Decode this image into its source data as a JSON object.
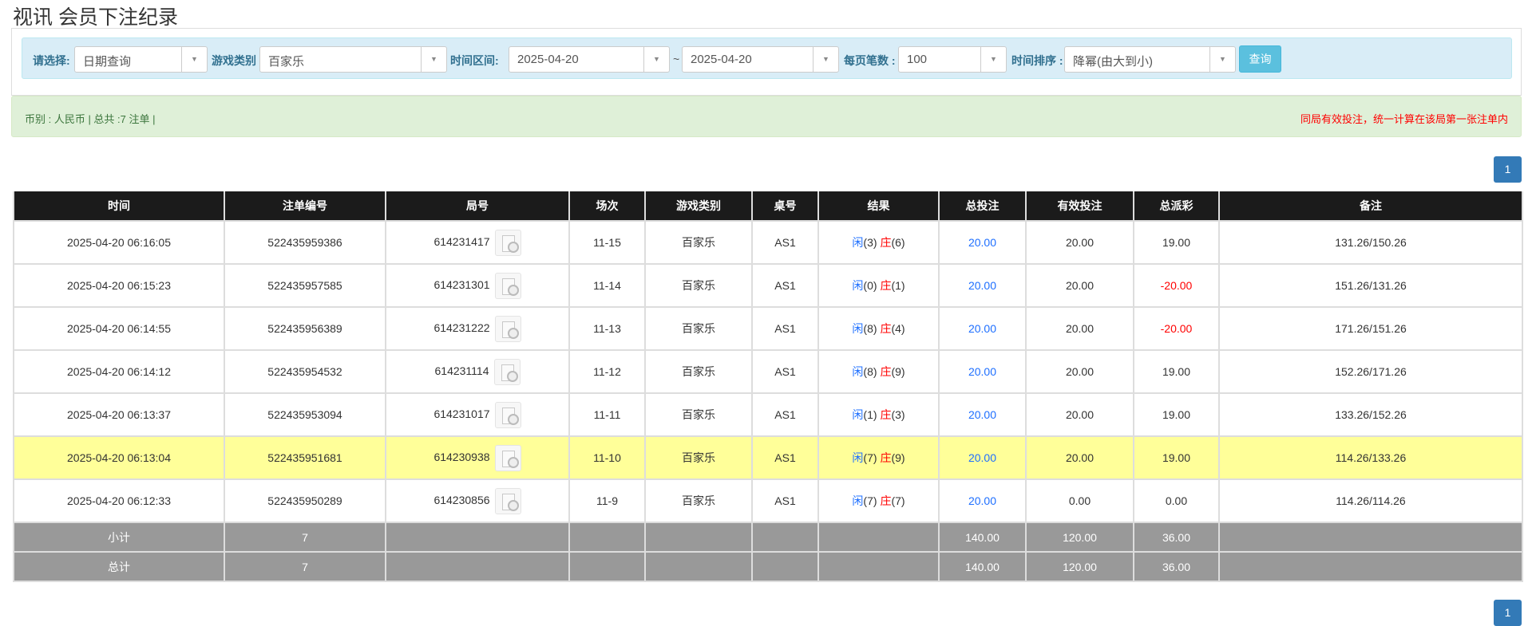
{
  "title": "视讯 会员下注纪录",
  "filter": {
    "select_label": "请选择:",
    "select_value": "日期查询",
    "game_label": "游戏类别",
    "game_value": "百家乐",
    "range_label": "时间区间:",
    "date_from": "2025-04-20",
    "tilde": "~",
    "date_to": "2025-04-20",
    "per_page_label": "每页笔数 :",
    "per_page_value": "100",
    "sort_label": "时间排序 :",
    "sort_value": "降幂(由大到小)",
    "query_label": "查询"
  },
  "summary": {
    "left": "币别 : 人民币 | 总共 :7 注单 |",
    "right": "同局有效投注，统一计算在该局第一张注单内"
  },
  "pagination": {
    "page": "1"
  },
  "table": {
    "headers": [
      "时间",
      "注单编号",
      "局号",
      "场次",
      "游戏类别",
      "桌号",
      "结果",
      "总投注",
      "有效投注",
      "总派彩",
      "备注"
    ],
    "player_label": "闲",
    "banker_label": "庄",
    "rows": [
      {
        "time": "2025-04-20 06:16:05",
        "bet_id": "522435959386",
        "round": "614231417",
        "shoe": "11-15",
        "game": "百家乐",
        "table": "AS1",
        "player": "(3)",
        "banker": "(6)",
        "total": "20.00",
        "valid": "20.00",
        "payout": "19.00",
        "note": "131.26/150.26"
      },
      {
        "time": "2025-04-20 06:15:23",
        "bet_id": "522435957585",
        "round": "614231301",
        "shoe": "11-14",
        "game": "百家乐",
        "table": "AS1",
        "player": "(0)",
        "banker": "(1)",
        "total": "20.00",
        "valid": "20.00",
        "payout": "-20.00",
        "note": "151.26/131.26"
      },
      {
        "time": "2025-04-20 06:14:55",
        "bet_id": "522435956389",
        "round": "614231222",
        "shoe": "11-13",
        "game": "百家乐",
        "table": "AS1",
        "player": "(8)",
        "banker": "(4)",
        "total": "20.00",
        "valid": "20.00",
        "payout": "-20.00",
        "note": "171.26/151.26"
      },
      {
        "time": "2025-04-20 06:14:12",
        "bet_id": "522435954532",
        "round": "614231114",
        "shoe": "11-12",
        "game": "百家乐",
        "table": "AS1",
        "player": "(8)",
        "banker": "(9)",
        "total": "20.00",
        "valid": "20.00",
        "payout": "19.00",
        "note": "152.26/171.26"
      },
      {
        "time": "2025-04-20 06:13:37",
        "bet_id": "522435953094",
        "round": "614231017",
        "shoe": "11-11",
        "game": "百家乐",
        "table": "AS1",
        "player": "(1)",
        "banker": "(3)",
        "total": "20.00",
        "valid": "20.00",
        "payout": "19.00",
        "note": "133.26/152.26"
      },
      {
        "time": "2025-04-20 06:13:04",
        "bet_id": "522435951681",
        "round": "614230938",
        "shoe": "11-10",
        "game": "百家乐",
        "table": "AS1",
        "player": "(7)",
        "banker": "(9)",
        "total": "20.00",
        "valid": "20.00",
        "payout": "19.00",
        "note": "114.26/133.26",
        "highlight": true
      },
      {
        "time": "2025-04-20 06:12:33",
        "bet_id": "522435950289",
        "round": "614230856",
        "shoe": "11-9",
        "game": "百家乐",
        "table": "AS1",
        "player": "(7)",
        "banker": "(7)",
        "total": "20.00",
        "valid": "0.00",
        "payout": "0.00",
        "note": "114.26/114.26"
      }
    ],
    "totals": [
      {
        "label": "小计",
        "count": "7",
        "total": "140.00",
        "valid": "120.00",
        "payout": "36.00"
      },
      {
        "label": "总计",
        "count": "7",
        "total": "140.00",
        "valid": "120.00",
        "payout": "36.00"
      }
    ]
  },
  "colors": {
    "header_bg": "#1b1b1b",
    "highlight_row": "#ffff99",
    "total_row": "#999999",
    "bet_blue": "#1e6fff",
    "negative_red": "#ff0000"
  }
}
